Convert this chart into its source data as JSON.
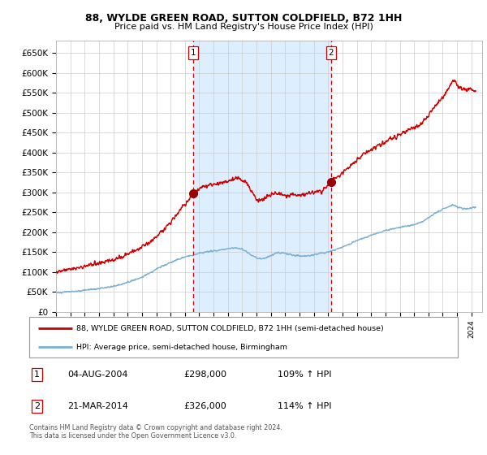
{
  "title_line1": "88, WYLDE GREEN ROAD, SUTTON COLDFIELD, B72 1HH",
  "title_line2": "Price paid vs. HM Land Registry's House Price Index (HPI)",
  "legend_line1": "88, WYLDE GREEN ROAD, SUTTON COLDFIELD, B72 1HH (semi-detached house)",
  "legend_line2": "HPI: Average price, semi-detached house, Birmingham",
  "footer": "Contains HM Land Registry data © Crown copyright and database right 2024.\nThis data is licensed under the Open Government Licence v3.0.",
  "sale1_label": "1",
  "sale1_date": "04-AUG-2004",
  "sale1_price": "£298,000",
  "sale1_hpi": "109% ↑ HPI",
  "sale2_label": "2",
  "sale2_date": "21-MAR-2014",
  "sale2_price": "£326,000",
  "sale2_hpi": "114% ↑ HPI",
  "red_line_color": "#cc0000",
  "blue_line_color": "#7ab0d4",
  "bg_between_color": "#ddeeff",
  "marker_color": "#990000",
  "dashed_line_color": "#cc0000",
  "grid_color": "#cccccc",
  "bg_color": "#ffffff",
  "ylim": [
    0,
    680000
  ],
  "yticks": [
    0,
    50000,
    100000,
    150000,
    200000,
    250000,
    300000,
    350000,
    400000,
    450000,
    500000,
    550000,
    600000,
    650000
  ],
  "ytick_labels": [
    "£0",
    "£50K",
    "£100K",
    "£150K",
    "£200K",
    "£250K",
    "£300K",
    "£350K",
    "£400K",
    "£450K",
    "£500K",
    "£550K",
    "£600K",
    "£650K"
  ],
  "sale1_x": 2004.58,
  "sale1_y": 298000,
  "sale2_x": 2014.21,
  "sale2_y": 326000,
  "xmin": 1995.0,
  "xmax": 2024.75,
  "red_points": [
    [
      1995.0,
      100000
    ],
    [
      1995.5,
      103000
    ],
    [
      1996.0,
      107000
    ],
    [
      1996.5,
      110000
    ],
    [
      1997.0,
      115000
    ],
    [
      1997.5,
      119000
    ],
    [
      1998.0,
      122000
    ],
    [
      1998.5,
      126000
    ],
    [
      1999.0,
      130000
    ],
    [
      1999.5,
      137000
    ],
    [
      2000.0,
      145000
    ],
    [
      2000.5,
      153000
    ],
    [
      2001.0,
      162000
    ],
    [
      2001.5,
      173000
    ],
    [
      2002.0,
      187000
    ],
    [
      2002.5,
      206000
    ],
    [
      2003.0,
      225000
    ],
    [
      2003.5,
      248000
    ],
    [
      2004.0,
      270000
    ],
    [
      2004.4,
      285000
    ],
    [
      2004.58,
      298000
    ],
    [
      2004.8,
      303000
    ],
    [
      2005.0,
      308000
    ],
    [
      2005.3,
      314000
    ],
    [
      2005.6,
      318000
    ],
    [
      2006.0,
      320000
    ],
    [
      2006.3,
      322000
    ],
    [
      2006.6,
      325000
    ],
    [
      2007.0,
      328000
    ],
    [
      2007.3,
      332000
    ],
    [
      2007.6,
      336000
    ],
    [
      2008.0,
      332000
    ],
    [
      2008.3,
      322000
    ],
    [
      2008.6,
      308000
    ],
    [
      2009.0,
      282000
    ],
    [
      2009.3,
      280000
    ],
    [
      2009.6,
      285000
    ],
    [
      2010.0,
      292000
    ],
    [
      2010.3,
      298000
    ],
    [
      2010.6,
      296000
    ],
    [
      2011.0,
      293000
    ],
    [
      2011.3,
      291000
    ],
    [
      2011.6,
      293000
    ],
    [
      2012.0,
      294000
    ],
    [
      2012.3,
      296000
    ],
    [
      2012.6,
      298000
    ],
    [
      2013.0,
      299000
    ],
    [
      2013.3,
      301000
    ],
    [
      2013.6,
      304000
    ],
    [
      2014.0,
      318000
    ],
    [
      2014.21,
      326000
    ],
    [
      2014.5,
      335000
    ],
    [
      2014.8,
      342000
    ],
    [
      2015.0,
      350000
    ],
    [
      2015.3,
      358000
    ],
    [
      2015.6,
      367000
    ],
    [
      2016.0,
      380000
    ],
    [
      2016.3,
      390000
    ],
    [
      2016.6,
      398000
    ],
    [
      2017.0,
      407000
    ],
    [
      2017.3,
      413000
    ],
    [
      2017.6,
      420000
    ],
    [
      2018.0,
      427000
    ],
    [
      2018.3,
      433000
    ],
    [
      2018.6,
      438000
    ],
    [
      2019.0,
      445000
    ],
    [
      2019.3,
      450000
    ],
    [
      2019.6,
      456000
    ],
    [
      2020.0,
      462000
    ],
    [
      2020.3,
      468000
    ],
    [
      2020.6,
      478000
    ],
    [
      2021.0,
      492000
    ],
    [
      2021.3,
      508000
    ],
    [
      2021.6,
      522000
    ],
    [
      2022.0,
      538000
    ],
    [
      2022.3,
      555000
    ],
    [
      2022.6,
      572000
    ],
    [
      2022.8,
      580000
    ],
    [
      2023.0,
      572000
    ],
    [
      2023.2,
      562000
    ],
    [
      2023.4,
      556000
    ],
    [
      2023.6,
      558000
    ],
    [
      2023.8,
      560000
    ],
    [
      2024.0,
      558000
    ],
    [
      2024.3,
      555000
    ]
  ],
  "blue_points": [
    [
      1995.0,
      48000
    ],
    [
      1995.5,
      49000
    ],
    [
      1996.0,
      51000
    ],
    [
      1996.5,
      52000
    ],
    [
      1997.0,
      54000
    ],
    [
      1997.5,
      56000
    ],
    [
      1998.0,
      58000
    ],
    [
      1998.5,
      61000
    ],
    [
      1999.0,
      64000
    ],
    [
      1999.5,
      68000
    ],
    [
      2000.0,
      74000
    ],
    [
      2000.5,
      80000
    ],
    [
      2001.0,
      87000
    ],
    [
      2001.5,
      96000
    ],
    [
      2002.0,
      107000
    ],
    [
      2002.5,
      116000
    ],
    [
      2003.0,
      124000
    ],
    [
      2003.5,
      132000
    ],
    [
      2004.0,
      138000
    ],
    [
      2004.4,
      141000
    ],
    [
      2004.58,
      142000
    ],
    [
      2004.8,
      144000
    ],
    [
      2005.0,
      147000
    ],
    [
      2005.5,
      150000
    ],
    [
      2006.0,
      153000
    ],
    [
      2006.5,
      155000
    ],
    [
      2007.0,
      158000
    ],
    [
      2007.3,
      159000
    ],
    [
      2007.6,
      160000
    ],
    [
      2008.0,
      157000
    ],
    [
      2008.3,
      151000
    ],
    [
      2008.6,
      143000
    ],
    [
      2009.0,
      135000
    ],
    [
      2009.3,
      133000
    ],
    [
      2009.6,
      135000
    ],
    [
      2010.0,
      141000
    ],
    [
      2010.3,
      146000
    ],
    [
      2010.6,
      148000
    ],
    [
      2011.0,
      146000
    ],
    [
      2011.3,
      144000
    ],
    [
      2011.6,
      141000
    ],
    [
      2012.0,
      140000
    ],
    [
      2012.3,
      140000
    ],
    [
      2012.6,
      141000
    ],
    [
      2013.0,
      143000
    ],
    [
      2013.5,
      147000
    ],
    [
      2014.0,
      150000
    ],
    [
      2014.21,
      152000
    ],
    [
      2014.5,
      155000
    ],
    [
      2015.0,
      162000
    ],
    [
      2015.5,
      170000
    ],
    [
      2016.0,
      178000
    ],
    [
      2016.5,
      185000
    ],
    [
      2017.0,
      192000
    ],
    [
      2017.5,
      198000
    ],
    [
      2018.0,
      204000
    ],
    [
      2018.5,
      208000
    ],
    [
      2019.0,
      212000
    ],
    [
      2019.5,
      215000
    ],
    [
      2020.0,
      218000
    ],
    [
      2020.5,
      225000
    ],
    [
      2021.0,
      235000
    ],
    [
      2021.5,
      248000
    ],
    [
      2022.0,
      258000
    ],
    [
      2022.5,
      265000
    ],
    [
      2022.8,
      268000
    ],
    [
      2023.0,
      263000
    ],
    [
      2023.3,
      260000
    ],
    [
      2023.7,
      258000
    ],
    [
      2024.0,
      260000
    ],
    [
      2024.3,
      262000
    ]
  ]
}
